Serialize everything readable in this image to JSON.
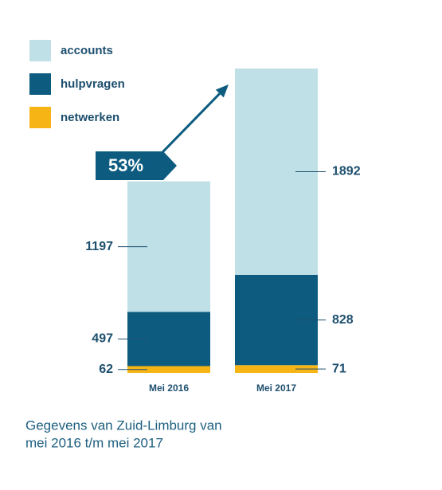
{
  "chart_data": {
    "type": "stacked-bar",
    "categories": [
      "Mei 2016",
      "Mei 2017"
    ],
    "series": [
      {
        "name": "accounts",
        "color": "#bfe0e6",
        "values": [
          1197,
          1892
        ]
      },
      {
        "name": "hulpvragen",
        "color": "#0d5c80",
        "values": [
          497,
          828
        ]
      },
      {
        "name": "netwerken",
        "color": "#f7b515",
        "values": [
          62,
          71
        ]
      }
    ],
    "annotation": "53%",
    "caption": [
      "Gegevens van Zuid-Limburg van",
      "mei 2016 t/m mei 2017"
    ]
  }
}
